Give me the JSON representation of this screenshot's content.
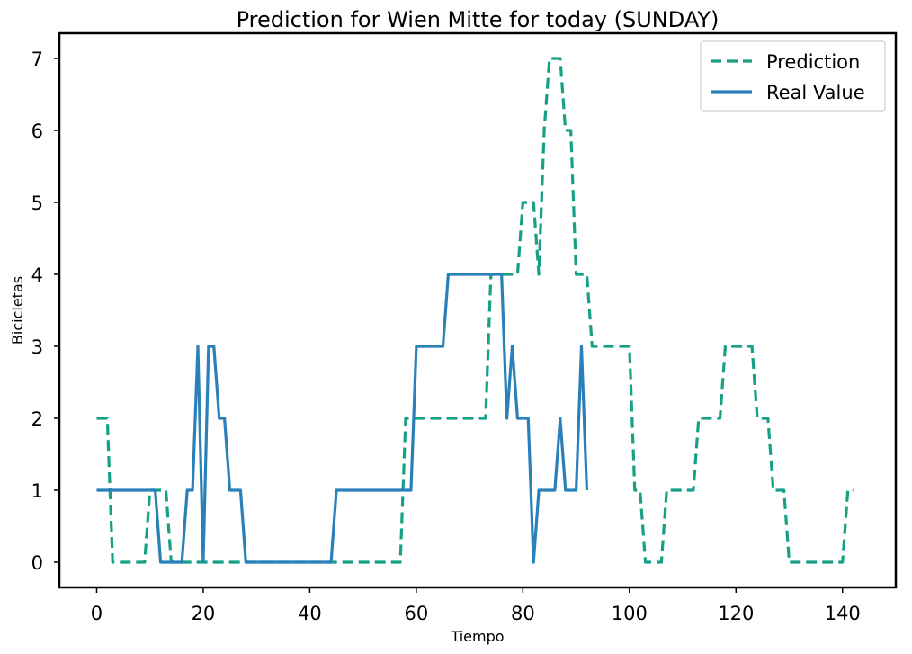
{
  "chart_data": {
    "type": "line",
    "title": "Prediction for Wien Mitte for today (SUNDAY)",
    "xlabel": "Tiempo",
    "ylabel": "Bicicletas",
    "xlim": [
      -7,
      150
    ],
    "ylim": [
      -0.35,
      7.35
    ],
    "xticks": [
      0,
      20,
      40,
      60,
      80,
      100,
      120,
      140
    ],
    "yticks": [
      0,
      1,
      2,
      3,
      4,
      5,
      6,
      7
    ],
    "grid": false,
    "legend_position": "top-right",
    "series": [
      {
        "name": "Prediction",
        "color": "#16a085",
        "style": "dashed",
        "x": [
          0,
          1,
          2,
          3,
          4,
          5,
          6,
          7,
          8,
          9,
          10,
          11,
          12,
          13,
          14,
          15,
          16,
          17,
          18,
          19,
          20,
          21,
          22,
          23,
          24,
          25,
          26,
          27,
          28,
          29,
          30,
          31,
          32,
          33,
          34,
          35,
          36,
          37,
          38,
          39,
          40,
          41,
          42,
          43,
          44,
          45,
          46,
          47,
          48,
          49,
          50,
          51,
          52,
          53,
          54,
          55,
          56,
          57,
          58,
          59,
          60,
          61,
          62,
          63,
          64,
          65,
          66,
          67,
          68,
          69,
          70,
          71,
          72,
          73,
          74,
          75,
          76,
          77,
          78,
          79,
          80,
          81,
          82,
          83,
          84,
          85,
          86,
          87,
          88,
          89,
          90,
          91,
          92,
          93,
          94,
          95,
          96,
          97,
          98,
          99,
          100,
          101,
          102,
          103,
          104,
          105,
          106,
          107,
          108,
          109,
          110,
          111,
          112,
          113,
          114,
          115,
          116,
          117,
          118,
          119,
          120,
          121,
          122,
          123,
          124,
          125,
          126,
          127,
          128,
          129,
          130,
          131,
          132,
          133,
          134,
          135,
          136,
          137,
          138,
          139,
          140,
          141,
          142
        ],
        "y": [
          2,
          2,
          2,
          0,
          0,
          0,
          0,
          0,
          0,
          0,
          1,
          1,
          1,
          1,
          0,
          0,
          0,
          0,
          0,
          0,
          0,
          0,
          0,
          0,
          0,
          0,
          0,
          0,
          0,
          0,
          0,
          0,
          0,
          0,
          0,
          0,
          0,
          0,
          0,
          0,
          0,
          0,
          0,
          0,
          0,
          0,
          0,
          0,
          0,
          0,
          0,
          0,
          0,
          0,
          0,
          0,
          0,
          0,
          2,
          2,
          2,
          2,
          2,
          2,
          2,
          2,
          2,
          2,
          2,
          2,
          2,
          2,
          2,
          2,
          4,
          4,
          4,
          4,
          4,
          4,
          5,
          5,
          5,
          4,
          6,
          7,
          7,
          7,
          6,
          6,
          4,
          4,
          4,
          3,
          3,
          3,
          3,
          3,
          3,
          3,
          3,
          1,
          1,
          0,
          0,
          0,
          0,
          1,
          1,
          1,
          1,
          1,
          1,
          2,
          2,
          2,
          2,
          2,
          3,
          3,
          3,
          3,
          3,
          3,
          2,
          2,
          2,
          1,
          1,
          1,
          0,
          0,
          0,
          0,
          0,
          0,
          0,
          0,
          0,
          0,
          0,
          1,
          1
        ]
      },
      {
        "name": "Real Value",
        "color": "#2a80b9",
        "style": "solid",
        "x": [
          0,
          1,
          2,
          3,
          4,
          5,
          6,
          7,
          8,
          9,
          10,
          11,
          12,
          13,
          14,
          15,
          16,
          17,
          18,
          19,
          20,
          21,
          22,
          23,
          24,
          25,
          26,
          27,
          28,
          29,
          30,
          31,
          32,
          33,
          34,
          35,
          36,
          37,
          38,
          39,
          40,
          41,
          42,
          43,
          44,
          45,
          46,
          47,
          48,
          49,
          50,
          51,
          52,
          53,
          54,
          55,
          56,
          57,
          58,
          59,
          60,
          61,
          62,
          63,
          64,
          65,
          66,
          67,
          68,
          69,
          70,
          71,
          72,
          73,
          74,
          75,
          76,
          77,
          78,
          79,
          80,
          81,
          82,
          83,
          84,
          85,
          86,
          87,
          88,
          89,
          90,
          91,
          92
        ],
        "y": [
          1,
          1,
          1,
          1,
          1,
          1,
          1,
          1,
          1,
          1,
          1,
          1,
          0,
          0,
          0,
          0,
          0,
          1,
          1,
          3,
          0,
          3,
          3,
          2,
          2,
          1,
          1,
          1,
          0,
          0,
          0,
          0,
          0,
          0,
          0,
          0,
          0,
          0,
          0,
          0,
          0,
          0,
          0,
          0,
          0,
          1,
          1,
          1,
          1,
          1,
          1,
          1,
          1,
          1,
          1,
          1,
          1,
          1,
          1,
          1,
          3,
          3,
          3,
          3,
          3,
          3,
          4,
          4,
          4,
          4,
          4,
          4,
          4,
          4,
          4,
          4,
          4,
          2,
          3,
          2,
          2,
          2,
          0,
          1,
          1,
          1,
          1,
          2,
          1,
          1,
          1,
          3,
          1
        ]
      }
    ]
  }
}
